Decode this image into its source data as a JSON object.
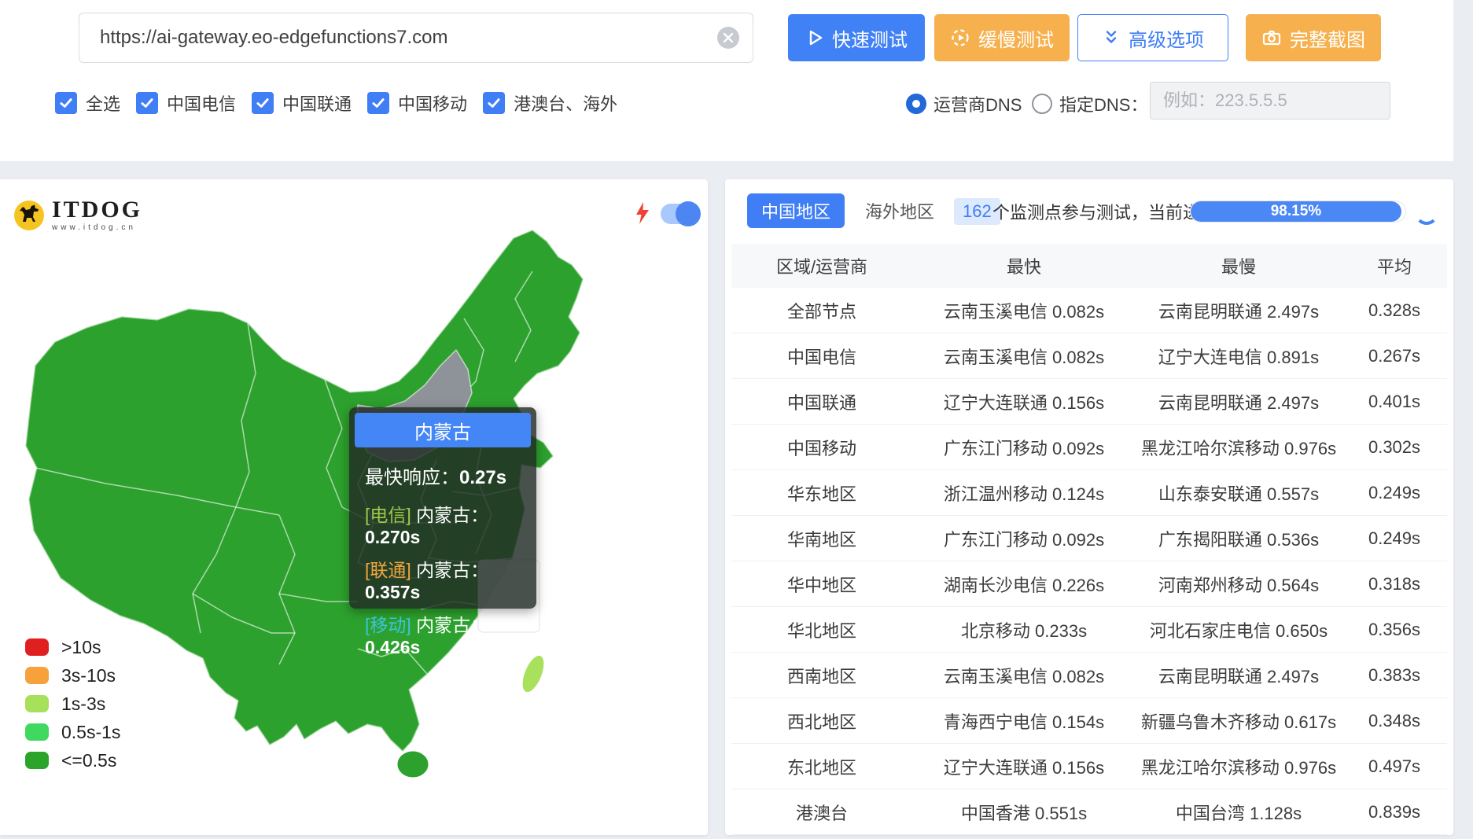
{
  "toolbar": {
    "url_value": "https://ai-gateway.eo-edgefunctions7.com",
    "quick_test": "快速测试",
    "slow_test": "缓慢测试",
    "advanced_options": "高级选项",
    "full_screenshot": "完整截图"
  },
  "filters": {
    "items": [
      {
        "label": "全选",
        "checked": true
      },
      {
        "label": "中国电信",
        "checked": true
      },
      {
        "label": "中国联通",
        "checked": true
      },
      {
        "label": "中国移动",
        "checked": true
      },
      {
        "label": "港澳台、海外",
        "checked": true
      }
    ]
  },
  "dns": {
    "carrier_label": "运营商DNS",
    "carrier_selected": true,
    "custom_label": "指定DNS：",
    "custom_placeholder": "例如：223.5.5.5"
  },
  "map_panel": {
    "logo_title": "ITDOG",
    "logo_subtitle": "www.itdog.cn",
    "map_color": "#2da12d",
    "hover_region_color": "#8e9399",
    "tooltip": {
      "title": "内蒙古",
      "fastest_label": "最快响应：",
      "fastest_value": "0.27s",
      "rows": [
        {
          "tag": "[电信]",
          "color": "#a0c84a",
          "label": "内蒙古：",
          "value": "0.270s"
        },
        {
          "tag": "[联通]",
          "color": "#f0a53e",
          "label": "内蒙古：",
          "value": "0.357s"
        },
        {
          "tag": "[移动]",
          "color": "#3cc3dc",
          "label": "内蒙古：",
          "value": "0.426s"
        }
      ]
    },
    "legend": [
      {
        "color": "#e02020",
        "label": ">10s"
      },
      {
        "color": "#f7a13c",
        "label": "3s-10s"
      },
      {
        "color": "#a7e15c",
        "label": "1s-3s"
      },
      {
        "color": "#3ed95e",
        "label": "0.5s-1s"
      },
      {
        "color": "#2aa42a",
        "label": "<=0.5s"
      }
    ]
  },
  "results_panel": {
    "tabs": [
      {
        "label": "中国地区",
        "active": true
      },
      {
        "label": "海外地区",
        "active": false
      }
    ],
    "monitor_count": "162",
    "monitor_text": "个监测点参与测试，当前进度：",
    "progress": "98.15%",
    "table": {
      "headers": [
        "区域/运营商",
        "最快",
        "最慢",
        "平均"
      ],
      "rows": [
        [
          "全部节点",
          "云南玉溪电信 0.082s",
          "云南昆明联通 2.497s",
          "0.328s"
        ],
        [
          "中国电信",
          "云南玉溪电信 0.082s",
          "辽宁大连电信 0.891s",
          "0.267s"
        ],
        [
          "中国联通",
          "辽宁大连联通 0.156s",
          "云南昆明联通 2.497s",
          "0.401s"
        ],
        [
          "中国移动",
          "广东江门移动 0.092s",
          "黑龙江哈尔滨移动 0.976s",
          "0.302s"
        ],
        [
          "华东地区",
          "浙江温州移动 0.124s",
          "山东泰安联通 0.557s",
          "0.249s"
        ],
        [
          "华南地区",
          "广东江门移动 0.092s",
          "广东揭阳联通 0.536s",
          "0.249s"
        ],
        [
          "华中地区",
          "湖南长沙电信 0.226s",
          "河南郑州移动 0.564s",
          "0.318s"
        ],
        [
          "华北地区",
          "北京移动 0.233s",
          "河北石家庄电信 0.650s",
          "0.356s"
        ],
        [
          "西南地区",
          "云南玉溪电信 0.082s",
          "云南昆明联通 2.497s",
          "0.383s"
        ],
        [
          "西北地区",
          "青海西宁电信 0.154s",
          "新疆乌鲁木齐移动 0.617s",
          "0.348s"
        ],
        [
          "东北地区",
          "辽宁大连联通 0.156s",
          "黑龙江哈尔滨移动 0.976s",
          "0.497s"
        ],
        [
          "港澳台",
          "中国香港 0.551s",
          "中国台湾 1.128s",
          "0.839s"
        ]
      ]
    }
  }
}
